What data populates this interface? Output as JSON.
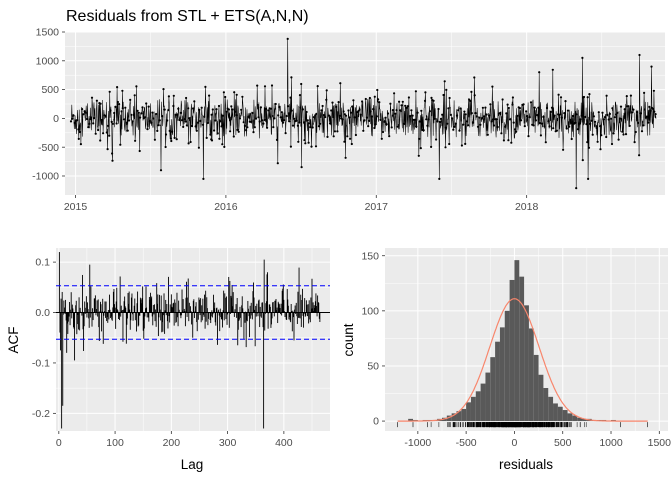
{
  "title": "Residuals from STL +  ETS(A,N,N)",
  "chart_data": [
    {
      "type": "line",
      "panel": "residual-series",
      "xlabel": "",
      "ylabel": "",
      "x_ticks": [
        "2015",
        "2016",
        "2017",
        "2018"
      ],
      "x_range": [
        2014.93,
        2018.92
      ],
      "y_ticks": [
        1500,
        1000,
        500,
        0,
        -500,
        -1000
      ],
      "ylim": [
        -1330,
        1500
      ],
      "markers": true,
      "n_points": 1424,
      "notable_points": [
        {
          "x": 2016.41,
          "y": 1380
        },
        {
          "x": 2015.85,
          "y": -1050
        },
        {
          "x": 2015.57,
          "y": -900
        },
        {
          "x": 2017.42,
          "y": -1050
        },
        {
          "x": 2018.33,
          "y": -1210
        },
        {
          "x": 2018.41,
          "y": -1050
        },
        {
          "x": 2018.75,
          "y": 1100
        },
        {
          "x": 2018.83,
          "y": 900
        },
        {
          "x": 2018.87,
          "y": -830
        },
        {
          "x": 2018.37,
          "y": 1050
        }
      ],
      "grid": true
    },
    {
      "type": "bar",
      "panel": "acf",
      "xlabel": "Lag",
      "ylabel": "ACF",
      "x_ticks": [
        0,
        100,
        200,
        300,
        400
      ],
      "xlim": [
        -5,
        482
      ],
      "y_ticks": [
        0.1,
        0.0,
        -0.1,
        -0.2
      ],
      "ylim": [
        -0.235,
        0.128
      ],
      "confidence_band": [
        -0.053,
        0.053
      ],
      "max_lag": 464,
      "notable_lags": [
        {
          "lag": 1,
          "acf": 0.12
        },
        {
          "lag": 3,
          "acf": -0.075
        },
        {
          "lag": 5,
          "acf": -0.23
        },
        {
          "lag": 7,
          "acf": -0.185
        },
        {
          "lag": 14,
          "acf": -0.08
        },
        {
          "lag": 28,
          "acf": -0.095
        },
        {
          "lag": 55,
          "acf": 0.095
        },
        {
          "lag": 364,
          "acf": -0.23
        },
        {
          "lag": 365,
          "acf": 0.105
        },
        {
          "lag": 371,
          "acf": 0.08
        }
      ],
      "grid": true
    },
    {
      "type": "bar",
      "panel": "histogram",
      "xlabel": "residuals",
      "ylabel": "count",
      "x_ticks": [
        -1000,
        -500,
        0,
        500,
        1000,
        1500
      ],
      "xlim": [
        -1340,
        1590
      ],
      "y_ticks": [
        150,
        100,
        50,
        0
      ],
      "ylim": [
        -9,
        157
      ],
      "bins": [
        {
          "x": -1075,
          "count": 2
        },
        {
          "x": -1025,
          "count": 1
        },
        {
          "x": -975,
          "count": 0
        },
        {
          "x": -925,
          "count": 1
        },
        {
          "x": -875,
          "count": 1
        },
        {
          "x": -825,
          "count": 1
        },
        {
          "x": -775,
          "count": 2
        },
        {
          "x": -725,
          "count": 3
        },
        {
          "x": -675,
          "count": 5
        },
        {
          "x": -625,
          "count": 7
        },
        {
          "x": -575,
          "count": 9
        },
        {
          "x": -525,
          "count": 11
        },
        {
          "x": -475,
          "count": 17
        },
        {
          "x": -425,
          "count": 22
        },
        {
          "x": -375,
          "count": 27
        },
        {
          "x": -325,
          "count": 34
        },
        {
          "x": -275,
          "count": 44
        },
        {
          "x": -225,
          "count": 58
        },
        {
          "x": -175,
          "count": 72
        },
        {
          "x": -125,
          "count": 85
        },
        {
          "x": -75,
          "count": 100
        },
        {
          "x": -25,
          "count": 128
        },
        {
          "x": 25,
          "count": 146
        },
        {
          "x": 75,
          "count": 131
        },
        {
          "x": 125,
          "count": 105
        },
        {
          "x": 175,
          "count": 84
        },
        {
          "x": 225,
          "count": 60
        },
        {
          "x": 275,
          "count": 42
        },
        {
          "x": 325,
          "count": 30
        },
        {
          "x": 375,
          "count": 22
        },
        {
          "x": 425,
          "count": 16
        },
        {
          "x": 475,
          "count": 13
        },
        {
          "x": 525,
          "count": 10
        },
        {
          "x": 575,
          "count": 7
        },
        {
          "x": 625,
          "count": 5
        },
        {
          "x": 675,
          "count": 3
        },
        {
          "x": 725,
          "count": 2
        },
        {
          "x": 775,
          "count": 2
        },
        {
          "x": 825,
          "count": 1
        },
        {
          "x": 875,
          "count": 1
        },
        {
          "x": 925,
          "count": 1
        },
        {
          "x": 975,
          "count": 0
        },
        {
          "x": 1025,
          "count": 1
        }
      ],
      "bin_width": 50,
      "normal_curve": {
        "mean": 0,
        "sd": 255,
        "peak_count": 111
      },
      "rug_range": [
        -1210,
        1380
      ],
      "grid": true
    }
  ],
  "colors": {
    "panel_bg": "#ebebeb",
    "grid_major": "#ffffff",
    "line": "#000000",
    "bars": "#595959",
    "confidence": "#0000ff",
    "normal_curve": "#f8866c",
    "tick_text": "#4d4d4d"
  }
}
